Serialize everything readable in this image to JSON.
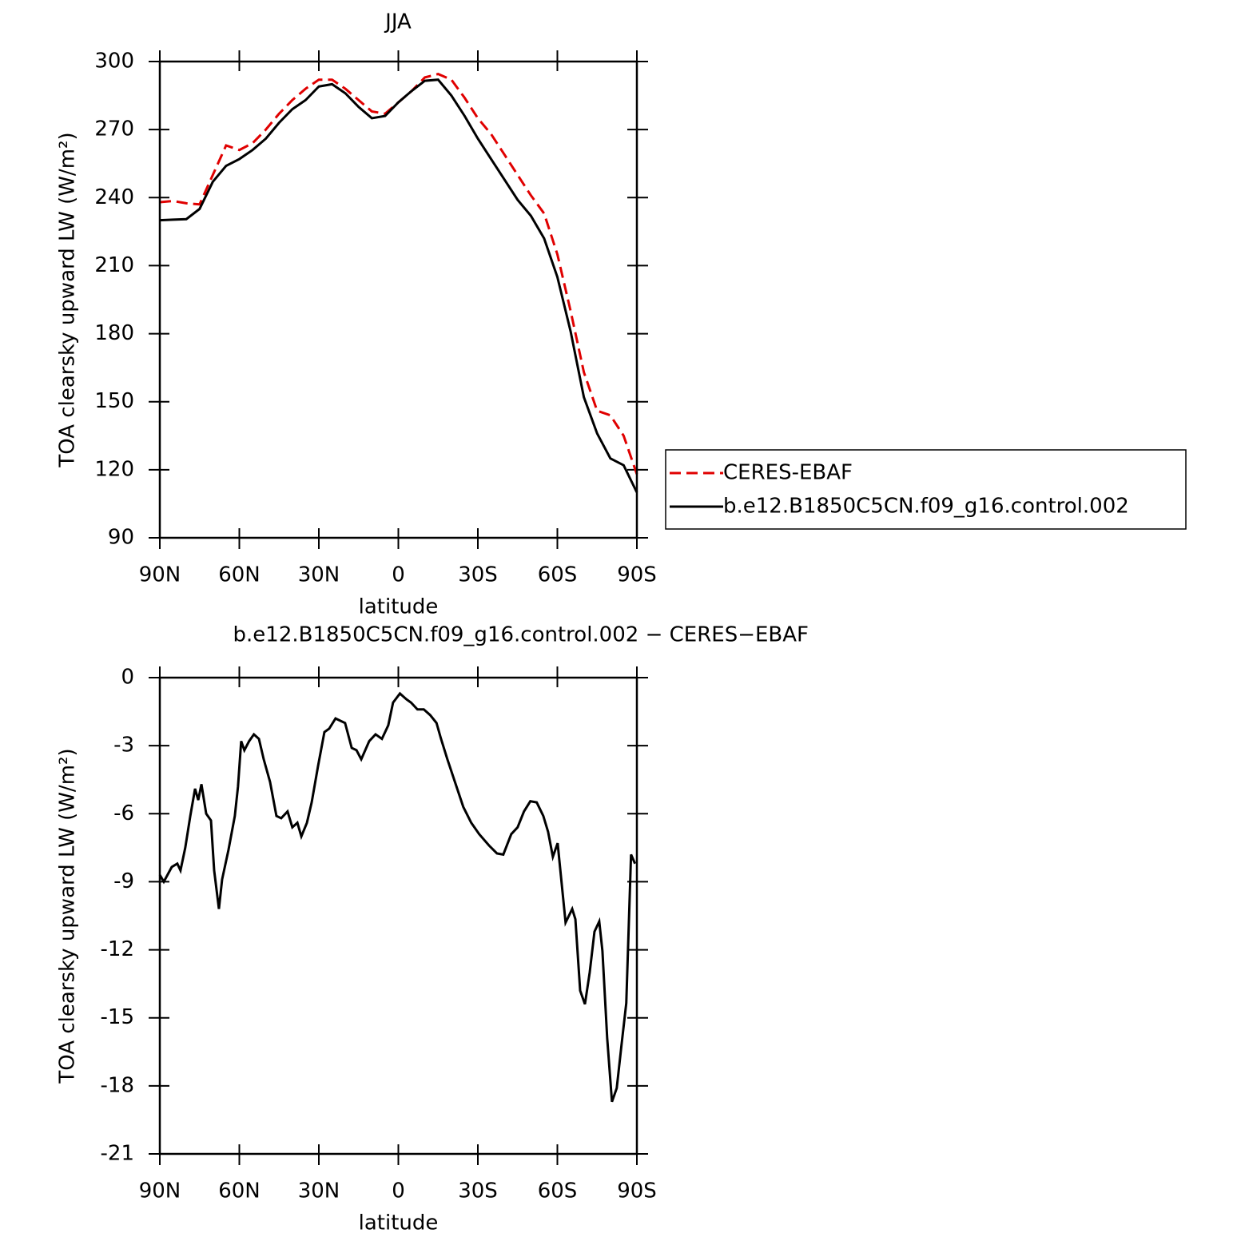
{
  "chart_data": [
    {
      "type": "line",
      "title": "JJA",
      "x_label": "latitude",
      "y_label": "TOA clearsky upward LW (W/m²)",
      "xlim": [
        90,
        -90
      ],
      "xticks": [
        {
          "value": 90,
          "label": "90N"
        },
        {
          "value": 60,
          "label": "60N"
        },
        {
          "value": 30,
          "label": "30N"
        },
        0,
        {
          "value": -30,
          "label": "30S"
        },
        {
          "value": -60,
          "label": "60S"
        },
        {
          "value": -90,
          "label": "90S"
        }
      ],
      "ylim": [
        90,
        300
      ],
      "yticks": [
        90,
        120,
        150,
        180,
        210,
        240,
        270,
        300
      ],
      "legend": "right",
      "x": [
        90,
        85,
        80,
        75,
        70,
        65,
        60,
        55,
        50,
        45,
        40,
        35,
        30,
        25,
        20,
        15,
        10,
        5,
        0,
        -5,
        -10,
        -15,
        -20,
        -25,
        -30,
        -35,
        -40,
        -45,
        -50,
        -55,
        -60,
        -65,
        -70,
        -75,
        -80,
        -85,
        -90
      ],
      "series": [
        {
          "name": "CERES-EBAF",
          "color": "#e00000",
          "line_style": "dashed",
          "values": [
            238,
            238.5,
            237.5,
            237,
            250,
            263,
            261,
            264,
            270,
            277,
            283,
            288,
            292,
            292,
            288,
            283,
            278,
            277,
            282,
            287,
            293,
            294.5,
            292,
            284,
            275,
            268,
            259,
            250,
            241,
            233,
            215,
            190,
            163,
            146,
            144,
            135,
            118
          ]
        },
        {
          "name": "b.e12.B1850C5CN.f09_g16.control.002",
          "color": "#000000",
          "line_style": "solid",
          "values": [
            230,
            230.3,
            230.5,
            235,
            247,
            254,
            257,
            261,
            266,
            273,
            279,
            283,
            289,
            290,
            286,
            280,
            275,
            276,
            282,
            287,
            291.5,
            292,
            285,
            276,
            266,
            257,
            248,
            239,
            232,
            222,
            205,
            181,
            152,
            136,
            125,
            122,
            110
          ]
        }
      ]
    },
    {
      "type": "line",
      "title": "b.e12.B1850C5CN.f09_g16.control.002 − CERES−EBAF",
      "x_label": "latitude",
      "y_label": "TOA clearsky upward LW (W/m²)",
      "xlim": [
        90,
        -90
      ],
      "xticks": [
        {
          "value": 90,
          "label": "90N"
        },
        {
          "value": 60,
          "label": "60N"
        },
        {
          "value": 30,
          "label": "30N"
        },
        0,
        {
          "value": -30,
          "label": "30S"
        },
        {
          "value": -60,
          "label": "60S"
        },
        {
          "value": -90,
          "label": "90S"
        }
      ],
      "ylim": [
        -21,
        0
      ],
      "yticks": [
        -21,
        -18,
        -15,
        -12,
        -9,
        -6,
        -3,
        0
      ],
      "x": [
        90,
        88.5,
        85.5,
        83.4,
        82.2,
        80.4,
        78.5,
        76.7,
        75.5,
        74.3,
        72.5,
        70.7,
        69.5,
        67.7,
        66.5,
        64.1,
        61.7,
        60.5,
        59.3,
        58.1,
        56.3,
        54.5,
        52.6,
        50.8,
        48.4,
        46.0,
        44.2,
        41.8,
        40.0,
        38.1,
        36.6,
        34.5,
        32.7,
        30.3,
        27.9,
        26.1,
        23.7,
        20.1,
        17.6,
        15.8,
        14.0,
        11.0,
        8.6,
        6.2,
        3.8,
        2.0,
        -0.6,
        -3.0,
        -4.8,
        -7.2,
        -9.6,
        -12.0,
        -14.4,
        -16.1,
        -18.5,
        -21.5,
        -24.5,
        -27.5,
        -30.5,
        -34.2,
        -37.2,
        -39.6,
        -42.6,
        -45.0,
        -47.4,
        -49.8,
        -52.2,
        -54.7,
        -56.5,
        -58.3,
        -60.1,
        -63.1,
        -65.6,
        -66.8,
        -68.6,
        -70.4,
        -72.2,
        -74.0,
        -75.8,
        -77.0,
        -78.8,
        -80.6,
        -82.4,
        -84.2,
        -86.0,
        -87.8,
        -89.3
      ],
      "series": [
        {
          "color": "#000000",
          "line_style": "solid",
          "values": [
            -8.7,
            -9.0,
            -8.35,
            -8.2,
            -8.5,
            -7.5,
            -6.1,
            -4.9,
            -5.4,
            -4.7,
            -6.0,
            -6.3,
            -8.5,
            -10.2,
            -8.9,
            -7.6,
            -6.1,
            -4.8,
            -2.8,
            -3.2,
            -2.8,
            -2.5,
            -2.7,
            -3.6,
            -4.6,
            -6.1,
            -6.2,
            -5.9,
            -6.6,
            -6.4,
            -7.0,
            -6.4,
            -5.5,
            -3.9,
            -2.4,
            -2.25,
            -1.8,
            -2.0,
            -3.1,
            -3.2,
            -3.6,
            -2.8,
            -2.5,
            -2.7,
            -2.1,
            -1.1,
            -0.7,
            -0.95,
            -1.1,
            -1.4,
            -1.4,
            -1.65,
            -2.0,
            -2.7,
            -3.6,
            -4.65,
            -5.7,
            -6.4,
            -6.9,
            -7.4,
            -7.75,
            -7.8,
            -6.9,
            -6.6,
            -5.9,
            -5.45,
            -5.5,
            -6.1,
            -6.8,
            -7.9,
            -7.3,
            -10.8,
            -10.2,
            -10.65,
            -13.8,
            -14.4,
            -13.0,
            -11.2,
            -10.75,
            -12.05,
            -15.9,
            -18.7,
            -18.1,
            -16.2,
            -14.35,
            -7.8,
            -8.2
          ]
        }
      ]
    }
  ]
}
